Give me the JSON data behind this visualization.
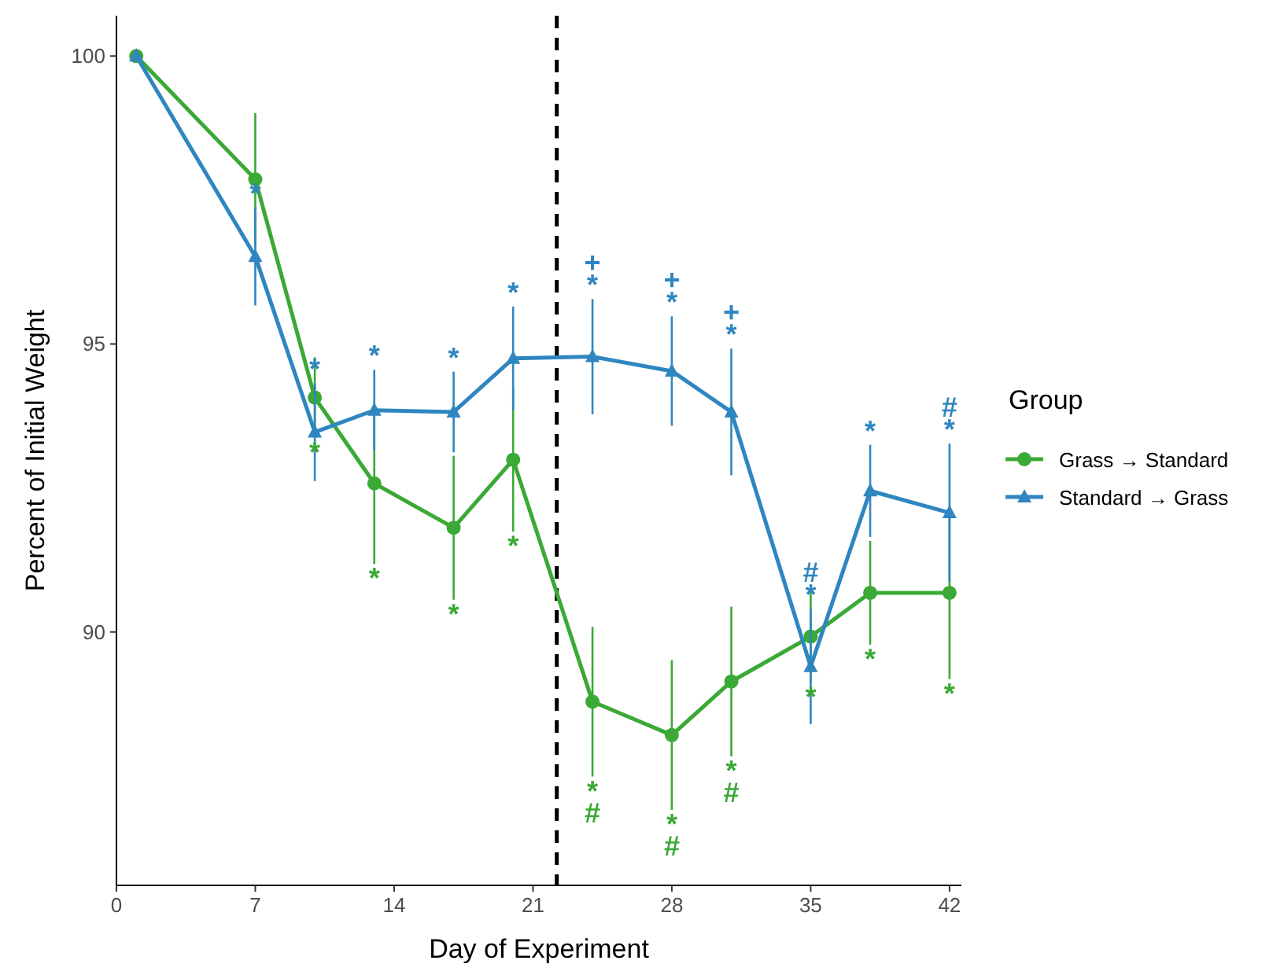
{
  "chart_data": {
    "type": "line",
    "xlabel": "Day of Experiment",
    "ylabel": "Percent of Initial Weight",
    "legend_title": "Group",
    "legend": "right",
    "grid": false,
    "x": [
      1,
      7,
      10,
      13,
      17,
      20,
      24,
      28,
      31,
      35,
      38,
      42
    ],
    "xlim": [
      0,
      42.6
    ],
    "xticks": [
      0,
      7,
      14,
      21,
      28,
      35,
      42
    ],
    "ylim": [
      85.6,
      100.7
    ],
    "yticks": [
      90,
      95,
      100
    ],
    "series": [
      {
        "name": "Grass → Standard",
        "color": "#3aa935",
        "marker": "circle",
        "values": [
          100,
          97.86,
          94.07,
          92.58,
          91.81,
          92.99,
          88.79,
          88.21,
          89.14,
          89.92,
          90.68,
          90.68
        ],
        "errors": [
          null,
          1.15,
          0.7,
          1.4,
          1.25,
          1.25,
          1.3,
          1.3,
          1.3,
          0.8,
          0.9,
          1.5
        ]
      },
      {
        "name": "Standard → Grass",
        "color": "#2f86c0",
        "marker": "triangle",
        "values": [
          100,
          96.52,
          93.47,
          93.85,
          93.82,
          94.75,
          94.78,
          94.53,
          93.82,
          89.4,
          92.45,
          92.07
        ],
        "errors": [
          null,
          0.85,
          0.85,
          0.7,
          0.7,
          0.9,
          1.0,
          0.95,
          1.1,
          1.0,
          0.8,
          1.2
        ]
      }
    ],
    "ref_lines": [
      {
        "axis": "x",
        "value": 22.2,
        "line_style": "dashed",
        "color": "#000000"
      }
    ],
    "annotations": [
      {
        "text": "*",
        "x": 7,
        "y": 97.37
      },
      {
        "text": "*",
        "x": 10,
        "y": 94.32
      },
      {
        "text": "*",
        "x": 13,
        "y": 94.55
      },
      {
        "text": "*",
        "x": 17,
        "y": 94.52
      },
      {
        "text": "*",
        "x": 20,
        "y": 95.65
      },
      {
        "text": "*",
        "x": 24,
        "y": 95.78
      },
      {
        "text": "*",
        "x": 28,
        "y": 95.48
      },
      {
        "text": "*",
        "x": 31,
        "y": 94.92
      },
      {
        "text": "*",
        "x": 35,
        "y": 90.4
      },
      {
        "text": "#",
        "x": 35,
        "y": 90.4
      },
      {
        "text": "*",
        "x": 38,
        "y": 93.25
      },
      {
        "text": "*",
        "x": 42,
        "y": 93.27
      },
      {
        "text": "#",
        "x": 42,
        "y": 93.27
      },
      {
        "text": "+",
        "x": 24,
        "y": 95.78
      },
      {
        "text": "+",
        "x": 28,
        "y": 95.48
      },
      {
        "text": "+",
        "x": 31,
        "y": 94.92
      },
      {
        "text": "*",
        "x": 10,
        "y": 93.37
      },
      {
        "text": "*",
        "x": 13,
        "y": 91.18
      },
      {
        "text": "*",
        "x": 17,
        "y": 90.56
      },
      {
        "text": "*",
        "x": 20,
        "y": 91.74
      },
      {
        "text": "*",
        "x": 24,
        "y": 87.49
      },
      {
        "text": "#",
        "x": 24,
        "y": 87.49
      },
      {
        "text": "*",
        "x": 28,
        "y": 86.91
      },
      {
        "text": "#",
        "x": 28,
        "y": 86.91
      },
      {
        "text": "*",
        "x": 31,
        "y": 87.84
      },
      {
        "text": "#",
        "x": 31,
        "y": 87.84
      },
      {
        "text": "*",
        "x": 35,
        "y": 89.12
      },
      {
        "text": "*",
        "x": 38,
        "y": 89.78
      },
      {
        "text": "*",
        "x": 42,
        "y": 89.18
      }
    ]
  }
}
